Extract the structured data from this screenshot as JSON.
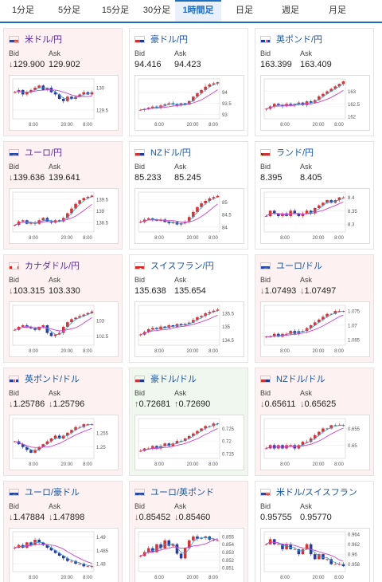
{
  "tabs": [
    "1分足",
    "5分足",
    "15分足",
    "30分足",
    "1時間足",
    "日足",
    "週足",
    "月足"
  ],
  "active_tab": "1時間足",
  "bid_label": "Bid",
  "ask_label": "Ask",
  "colors": {
    "accent": "#1f6fc1",
    "down_bg": "#fdf1f1",
    "up_bg": "#f0f7ef",
    "down_arrow": "#d33333",
    "up_arrow": "#2a8a2a",
    "candle_up": "#d33333",
    "candle_down": "#2b3a9f",
    "ma_long": "#cc44cc",
    "ma_short": "#3a9fd8"
  },
  "cards": [
    {
      "pair": "米ドル/円",
      "flag": "us",
      "state": "down",
      "bid": "129.900",
      "ask": "129.902",
      "bid_arrow": "↓",
      "ask_arrow": "",
      "y_ticks": [
        "130",
        "129.5"
      ],
      "x_ticks": [
        "8:00",
        "20:00",
        "8:00"
      ]
    },
    {
      "pair": "豪ドル/円",
      "flag": "au",
      "state": "flat",
      "bid": "94.416",
      "ask": "94.423",
      "bid_arrow": "",
      "ask_arrow": "",
      "y_ticks": [
        "94",
        "93.5",
        "93"
      ],
      "x_ticks": [
        "8:00",
        "20:00",
        "8:00"
      ]
    },
    {
      "pair": "英ポンド/円",
      "flag": "gb",
      "state": "flat",
      "bid": "163.399",
      "ask": "163.409",
      "bid_arrow": "",
      "ask_arrow": "",
      "y_ticks": [
        "163",
        "162.5",
        "162"
      ],
      "x_ticks": [
        "8:00",
        "20:00",
        "8:00"
      ]
    },
    {
      "pair": "ユーロ/円",
      "flag": "eu",
      "state": "down",
      "bid": "139.636",
      "ask": "139.641",
      "bid_arrow": "↓",
      "ask_arrow": "",
      "y_ticks": [
        "139.5",
        "139",
        "138.5"
      ],
      "x_ticks": [
        "8:00",
        "20:00",
        "8:00"
      ]
    },
    {
      "pair": "NZドル/円",
      "flag": "nz",
      "state": "flat",
      "bid": "85.233",
      "ask": "85.245",
      "bid_arrow": "",
      "ask_arrow": "",
      "y_ticks": [
        "85",
        "84.5",
        "84"
      ],
      "x_ticks": [
        "8:00",
        "20:00",
        "8:00"
      ]
    },
    {
      "pair": "ランド/円",
      "flag": "za",
      "state": "flat",
      "bid": "8.395",
      "ask": "8.405",
      "bid_arrow": "",
      "ask_arrow": "",
      "y_ticks": [
        "8.4",
        "8.35",
        "8.3"
      ],
      "x_ticks": [
        "8:00",
        "20:00",
        "8:00"
      ]
    },
    {
      "pair": "カナダドル/円",
      "flag": "ca",
      "state": "down",
      "bid": "103.315",
      "ask": "103.330",
      "bid_arrow": "↓",
      "ask_arrow": "",
      "y_ticks": [
        "103",
        "102.5"
      ],
      "x_ticks": [
        "8:00",
        "20:00",
        "8:00"
      ]
    },
    {
      "pair": "スイスフラン/円",
      "flag": "ch",
      "state": "flat",
      "bid": "135.638",
      "ask": "135.654",
      "bid_arrow": "",
      "ask_arrow": "",
      "y_ticks": [
        "135.5",
        "135",
        "134.5"
      ],
      "x_ticks": [
        "8:00",
        "20:00",
        "8:00"
      ]
    },
    {
      "pair": "ユーロ/ドル",
      "flag": "eu",
      "state": "down",
      "bid": "1.07493",
      "ask": "1.07497",
      "bid_arrow": "↓",
      "ask_arrow": "↓",
      "y_ticks": [
        "1.075",
        "1.07",
        "1.065"
      ],
      "x_ticks": [
        "8:00",
        "20:00",
        "8:00"
      ]
    },
    {
      "pair": "英ポンド/ドル",
      "flag": "gb",
      "state": "down",
      "bid": "1.25786",
      "ask": "1.25796",
      "bid_arrow": "↓",
      "ask_arrow": "↓",
      "y_ticks": [
        "1.255",
        "1.25"
      ],
      "x_ticks": [
        "8:00",
        "20:00",
        "8:00"
      ]
    },
    {
      "pair": "豪ドル/ドル",
      "flag": "au",
      "state": "up",
      "bid": "0.72681",
      "ask": "0.72690",
      "bid_arrow": "↑",
      "ask_arrow": "↑",
      "y_ticks": [
        "0.725",
        "0.72",
        "0.715"
      ],
      "x_ticks": [
        "8:00",
        "20:00",
        "8:00"
      ]
    },
    {
      "pair": "NZドル/ドル",
      "flag": "nz",
      "state": "down",
      "bid": "0.65611",
      "ask": "0.65625",
      "bid_arrow": "↓",
      "ask_arrow": "↓",
      "y_ticks": [
        "0.655",
        "0.65"
      ],
      "x_ticks": [
        "8:00",
        "20:00",
        "8:00"
      ]
    },
    {
      "pair": "ユーロ/豪ドル",
      "flag": "eu",
      "state": "down",
      "bid": "1.47884",
      "ask": "1.47898",
      "bid_arrow": "↓",
      "ask_arrow": "↓",
      "y_ticks": [
        "1.49",
        "1.485",
        "1.48"
      ],
      "x_ticks": [
        "8:00",
        "20:00",
        "8:00"
      ]
    },
    {
      "pair": "ユーロ/英ポンド",
      "flag": "eu",
      "state": "down",
      "bid": "0.85452",
      "ask": "0.85460",
      "bid_arrow": "↓",
      "ask_arrow": "↓",
      "y_ticks": [
        "0.855",
        "0.854",
        "0.853",
        "0.852",
        "0.851"
      ],
      "x_ticks": [
        "8:00",
        "20:00",
        "8:00"
      ]
    },
    {
      "pair": "米ドル/スイスフラン",
      "flag": "us",
      "state": "flat",
      "bid": "0.95755",
      "ask": "0.95770",
      "bid_arrow": "",
      "ask_arrow": "",
      "y_ticks": [
        "0.964",
        "0.962",
        "0.96",
        "0.958"
      ],
      "x_ticks": [
        "8:00",
        "20:00",
        "8:00"
      ]
    }
  ],
  "chart_series": [
    {
      "trend": [
        129.9,
        129.95,
        129.85,
        129.9,
        129.95,
        130.0,
        130.05,
        129.95,
        130.0,
        129.9,
        129.85,
        129.75,
        129.7,
        129.8,
        129.75,
        129.8,
        129.85,
        129.9,
        129.85,
        129.9
      ],
      "range": [
        129.3,
        130.2
      ]
    },
    {
      "trend": [
        93.2,
        93.25,
        93.3,
        93.35,
        93.3,
        93.4,
        93.45,
        93.5,
        93.45,
        93.4,
        93.5,
        93.45,
        93.6,
        93.8,
        93.95,
        94.1,
        94.25,
        94.35,
        94.4,
        94.45
      ],
      "range": [
        92.8,
        94.6
      ]
    },
    {
      "trend": [
        162.3,
        162.4,
        162.5,
        162.45,
        162.4,
        162.5,
        162.45,
        162.5,
        162.55,
        162.45,
        162.6,
        162.55,
        162.65,
        162.8,
        162.9,
        163.0,
        163.1,
        163.2,
        163.3,
        163.4
      ],
      "range": [
        161.9,
        163.5
      ]
    },
    {
      "trend": [
        138.4,
        138.55,
        138.6,
        138.45,
        138.5,
        138.45,
        138.6,
        138.7,
        138.55,
        138.5,
        138.6,
        138.55,
        138.7,
        138.9,
        139.1,
        139.3,
        139.45,
        139.55,
        139.6,
        139.65
      ],
      "range": [
        138.1,
        139.8
      ]
    },
    {
      "trend": [
        84.2,
        84.3,
        84.35,
        84.3,
        84.25,
        84.3,
        84.2,
        84.15,
        84.2,
        84.1,
        84.15,
        84.2,
        84.4,
        84.6,
        84.8,
        84.95,
        85.05,
        85.15,
        85.2,
        85.25
      ],
      "range": [
        83.8,
        85.4
      ]
    },
    {
      "trend": [
        8.33,
        8.35,
        8.34,
        8.33,
        8.34,
        8.33,
        8.35,
        8.34,
        8.33,
        8.34,
        8.35,
        8.34,
        8.36,
        8.37,
        8.38,
        8.39,
        8.38,
        8.39,
        8.4,
        8.4
      ],
      "range": [
        8.27,
        8.42
      ]
    },
    {
      "trend": [
        102.7,
        102.8,
        102.85,
        102.8,
        102.75,
        102.7,
        102.8,
        102.85,
        102.6,
        102.5,
        102.55,
        102.6,
        102.8,
        102.95,
        103.05,
        103.1,
        103.15,
        103.2,
        103.25,
        103.3
      ],
      "range": [
        102.2,
        103.5
      ]
    },
    {
      "trend": [
        134.7,
        134.8,
        134.9,
        134.95,
        134.9,
        135.0,
        134.95,
        135.05,
        135.0,
        135.1,
        135.05,
        135.1,
        135.15,
        135.25,
        135.35,
        135.4,
        135.5,
        135.55,
        135.6,
        135.64
      ],
      "range": [
        134.3,
        135.8
      ]
    },
    {
      "trend": [
        1.066,
        1.066,
        1.067,
        1.066,
        1.067,
        1.067,
        1.068,
        1.067,
        1.068,
        1.068,
        1.069,
        1.07,
        1.071,
        1.072,
        1.073,
        1.074,
        1.074,
        1.075,
        1.075,
        1.075
      ],
      "range": [
        1.063,
        1.077
      ]
    },
    {
      "trend": [
        1.252,
        1.251,
        1.25,
        1.249,
        1.248,
        1.249,
        1.25,
        1.251,
        1.252,
        1.253,
        1.254,
        1.253,
        1.254,
        1.255,
        1.256,
        1.257,
        1.257,
        1.258,
        1.258,
        1.258
      ],
      "range": [
        1.246,
        1.26
      ]
    },
    {
      "trend": [
        0.716,
        0.717,
        0.717,
        0.718,
        0.717,
        0.718,
        0.719,
        0.718,
        0.719,
        0.72,
        0.72,
        0.721,
        0.722,
        0.723,
        0.724,
        0.725,
        0.726,
        0.726,
        0.727,
        0.727
      ],
      "range": [
        0.713,
        0.729
      ]
    },
    {
      "trend": [
        0.649,
        0.65,
        0.649,
        0.65,
        0.649,
        0.65,
        0.65,
        0.649,
        0.65,
        0.651,
        0.651,
        0.652,
        0.653,
        0.654,
        0.655,
        0.655,
        0.656,
        0.656,
        0.656,
        0.656
      ],
      "range": [
        0.646,
        0.658
      ]
    },
    {
      "trend": [
        1.486,
        1.487,
        1.486,
        1.488,
        1.487,
        1.489,
        1.488,
        1.487,
        1.486,
        1.485,
        1.484,
        1.483,
        1.482,
        1.481,
        1.481,
        1.48,
        1.48,
        1.479,
        1.479,
        1.479
      ],
      "range": [
        1.477,
        1.492
      ]
    },
    {
      "trend": [
        0.8525,
        0.853,
        0.8535,
        0.853,
        0.854,
        0.8535,
        0.8545,
        0.8538,
        0.854,
        0.8528,
        0.8522,
        0.8535,
        0.8545,
        0.855,
        0.8547,
        0.8548,
        0.855,
        0.8546,
        0.8545,
        0.8545
      ],
      "range": [
        0.8505,
        0.8556
      ]
    },
    {
      "trend": [
        0.962,
        0.963,
        0.962,
        0.962,
        0.961,
        0.962,
        0.961,
        0.961,
        0.96,
        0.961,
        0.962,
        0.96,
        0.959,
        0.96,
        0.959,
        0.959,
        0.958,
        0.958,
        0.958,
        0.9576
      ],
      "range": [
        0.9565,
        0.9645
      ]
    }
  ]
}
